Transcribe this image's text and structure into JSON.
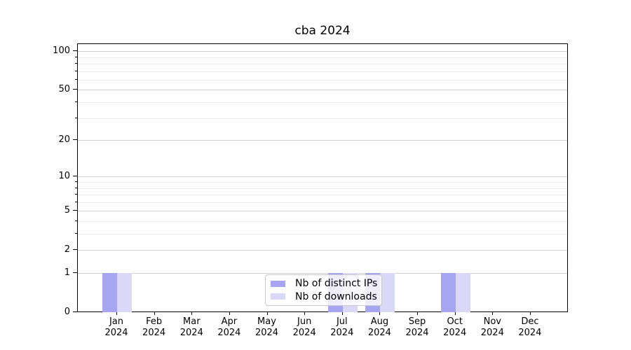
{
  "title": "cba 2024",
  "chart_data": {
    "type": "bar",
    "title": "cba 2024",
    "categories": [
      "Jan 2024",
      "Feb 2024",
      "Mar 2024",
      "Apr 2024",
      "May 2024",
      "Jun 2024",
      "Jul 2024",
      "Aug 2024",
      "Sep 2024",
      "Oct 2024",
      "Nov 2024",
      "Dec 2024"
    ],
    "series": [
      {
        "name": "Nb of distinct IPs",
        "color": "#a5a5f1",
        "values": [
          1,
          0,
          0,
          0,
          0,
          0,
          1,
          1,
          0,
          1,
          0,
          0
        ]
      },
      {
        "name": "Nb of downloads",
        "color": "#d9d9f7",
        "values": [
          1,
          0,
          0,
          0,
          0,
          0,
          1,
          1,
          0,
          1,
          0,
          0
        ]
      }
    ],
    "xlabel": "",
    "ylabel": "",
    "yscale": "log1p",
    "ylim": [
      0,
      112
    ],
    "y_major_ticks": [
      0,
      1,
      2,
      5,
      10,
      20,
      50,
      100
    ],
    "y_minor_ticks": [
      3,
      4,
      6,
      7,
      8,
      9,
      30,
      40,
      60,
      70,
      80,
      90
    ],
    "grid": true,
    "legend_position": "lower center"
  },
  "legend": {
    "items": [
      {
        "label": "Nb of distinct IPs"
      },
      {
        "label": "Nb of downloads"
      }
    ]
  },
  "colors": {
    "bar_distinct_ips": "#a5a5f1",
    "bar_downloads": "#d9d9f7",
    "grid_major": "#d2d2d2",
    "grid_minor": "#ededed",
    "axis": "#000000",
    "legend_border": "#c9c9c9"
  }
}
